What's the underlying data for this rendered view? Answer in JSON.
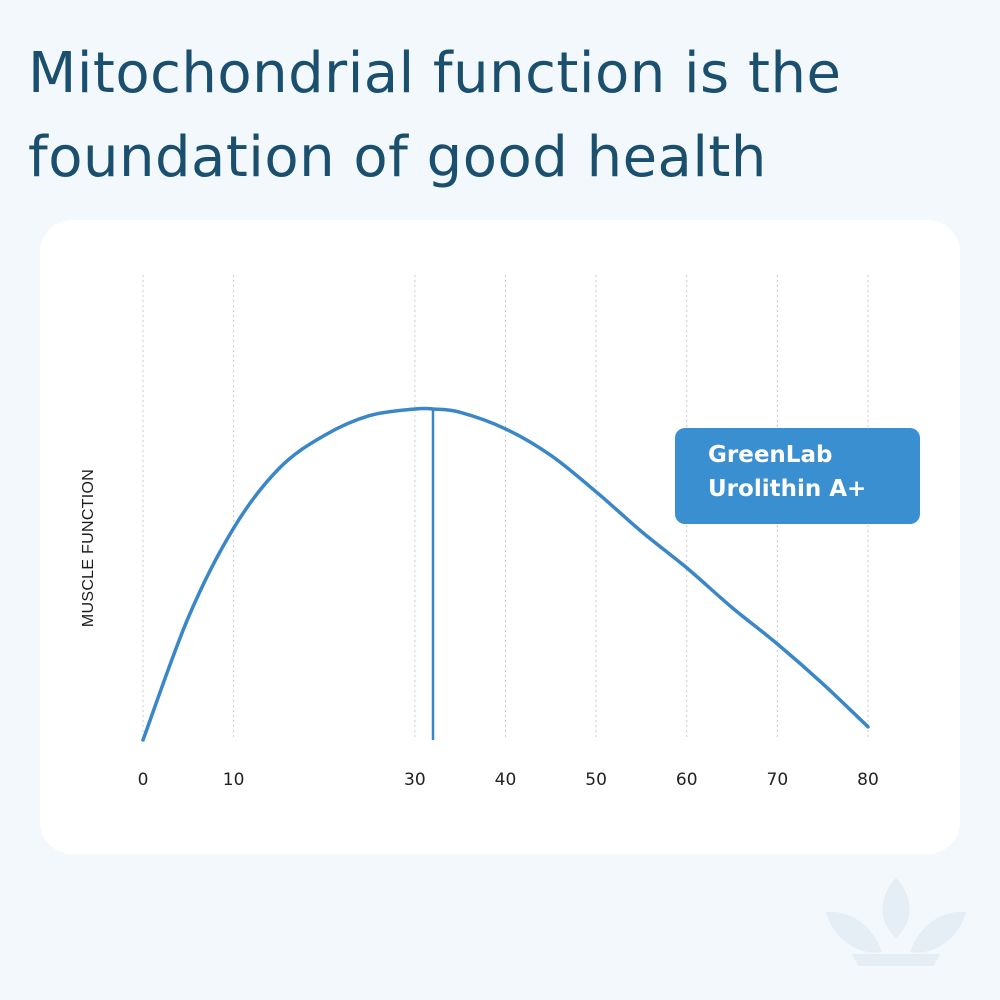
{
  "title": {
    "line1": "Mitochondrial function is the",
    "line2": "foundation of good health"
  },
  "chart_data": {
    "type": "line",
    "title": "Mitochondrial function is the foundation of good health",
    "xlabel": "",
    "ylabel": "MUSCLE FUNCTION",
    "xlim": [
      0,
      80
    ],
    "ylim": [
      0,
      100
    ],
    "x_ticks": [
      "0",
      "10",
      "30",
      "40",
      "50",
      "60",
      "70",
      "80"
    ],
    "grid": true,
    "series": [
      {
        "name": "GreenLab Urolithin A+",
        "x": [
          0,
          5,
          10,
          15,
          20,
          25,
          30,
          32,
          35,
          40,
          45,
          50,
          55,
          60,
          65,
          70,
          75,
          80
        ],
        "y": [
          0,
          37,
          64,
          82,
          92,
          98,
          100,
          100,
          99,
          94,
          86,
          75,
          63,
          52,
          40,
          29,
          17,
          4
        ]
      }
    ],
    "peak_marker_x": 32,
    "legend": {
      "line1": "GreenLab",
      "line2": "Urolithin A+",
      "color": "#3a8fd0",
      "placement": "right"
    }
  }
}
